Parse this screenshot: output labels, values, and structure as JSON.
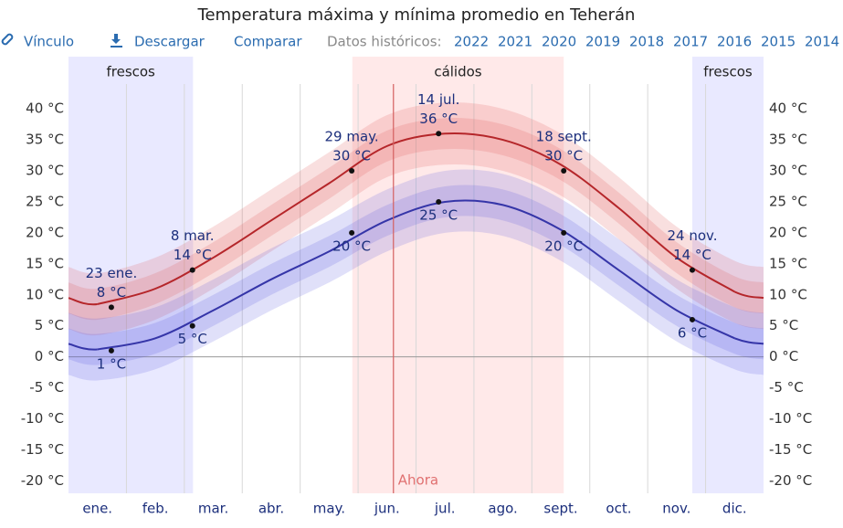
{
  "header": {
    "title": "Temperatura máxima y mínima promedio en Teherán",
    "links": [
      "Vínculo",
      "Descargar",
      "Comparar"
    ],
    "history_label": "Datos históricos:",
    "years": [
      "2022",
      "2021",
      "2020",
      "2019",
      "2018",
      "2017",
      "2016",
      "2015",
      "2014"
    ]
  },
  "chart_data": {
    "type": "line",
    "categories": [
      "ene.",
      "feb.",
      "mar.",
      "abr.",
      "may.",
      "jun.",
      "jul.",
      "ago.",
      "sept.",
      "oct.",
      "nov.",
      "dic."
    ],
    "xlim": [
      0,
      12
    ],
    "ylim": [
      -22,
      44
    ],
    "yticks": [
      {
        "value": 40,
        "label": "40 °C"
      },
      {
        "value": 35,
        "label": "35 °C"
      },
      {
        "value": 30,
        "label": "30 °C"
      },
      {
        "value": 25,
        "label": "25 °C"
      },
      {
        "value": 20,
        "label": "20 °C"
      },
      {
        "value": 15,
        "label": "15 °C"
      },
      {
        "value": 10,
        "label": "10 °C"
      },
      {
        "value": 5,
        "label": "5 °C"
      },
      {
        "value": 0,
        "label": "0 °C"
      },
      {
        "value": -5,
        "label": "-5 °C"
      },
      {
        "value": -10,
        "label": "-10 °C"
      },
      {
        "value": -15,
        "label": "-15 °C"
      },
      {
        "value": -20,
        "label": "-20 °C"
      }
    ],
    "series": [
      {
        "color": "#b5262a",
        "band_color": "#e05050",
        "spread": {
          "inner": 2.5,
          "outer": 5
        },
        "values": [
          8.5,
          11,
          16,
          22,
          28,
          34,
          36,
          35,
          31,
          24,
          16,
          10.5
        ]
      },
      {
        "color": "#3535a8",
        "band_color": "#5555e0",
        "spread": {
          "inner": 2.5,
          "outer": 5
        },
        "values": [
          1.2,
          3,
          7.5,
          12.5,
          17,
          22,
          25,
          24.5,
          20.5,
          14,
          7.5,
          3
        ]
      }
    ],
    "seasons": [
      {
        "label": "frescos",
        "from": 0,
        "to": 2.15,
        "color": "#6a6aff"
      },
      {
        "label": "cálidos",
        "from": 4.9,
        "to": 8.55,
        "color": "#ff6a6a"
      },
      {
        "label": "frescos",
        "from": 10.77,
        "to": 12,
        "color": "#6a6aff"
      }
    ],
    "now": {
      "label": "Ahora",
      "x": 5.61
    },
    "annotations": [
      {
        "date": "23 ene.",
        "x": 0.74,
        "max": 8,
        "max_label": "8 °C",
        "min": 1,
        "min_label": "1 °C"
      },
      {
        "date": "8 mar.",
        "x": 2.14,
        "max": 14,
        "max_label": "14 °C",
        "min": 5,
        "min_label": "5 °C"
      },
      {
        "date": "29 may.",
        "x": 4.89,
        "max": 30,
        "max_label": "30 °C",
        "min": 20,
        "min_label": "20 °C"
      },
      {
        "date": "14 jul.",
        "x": 6.39,
        "max": 36,
        "max_label": "36 °C",
        "min": 25,
        "min_label": "25 °C"
      },
      {
        "date": "18 sept.",
        "x": 8.55,
        "max": 30,
        "max_label": "30 °C",
        "min": 20,
        "min_label": "20 °C"
      },
      {
        "date": "24 nov.",
        "x": 10.77,
        "max": 14,
        "max_label": "14 °C",
        "min": 6,
        "min_label": "6 °C"
      }
    ]
  }
}
